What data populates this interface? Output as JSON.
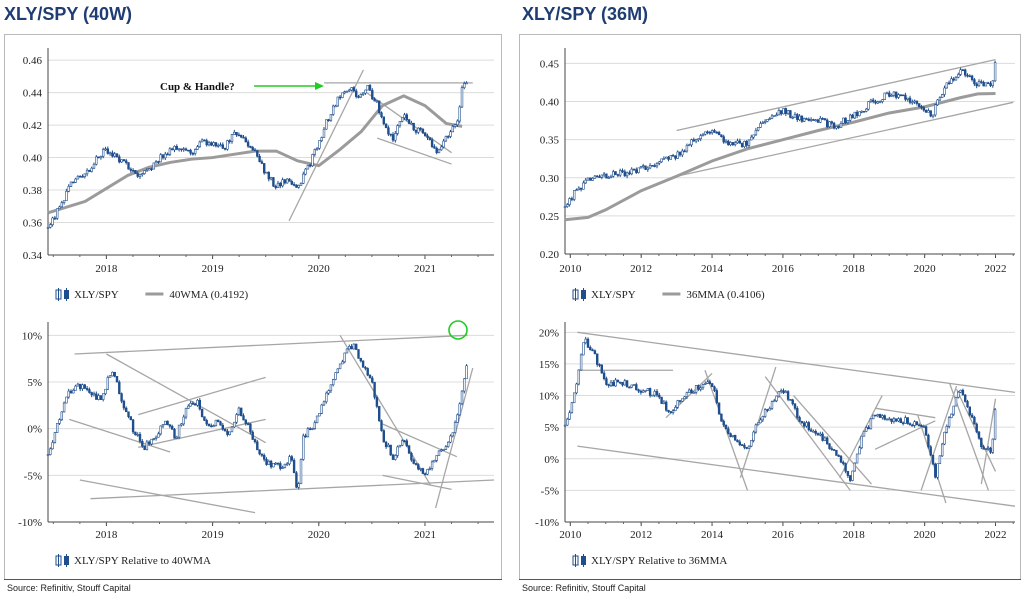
{
  "left_title": "XLY/SPY (40W)",
  "right_title": "XLY/SPY (36M)",
  "left_source": "Source: Refinitiv, Stouff Capital",
  "right_source": "Source: Refinitiv, Stouff Capital",
  "colors": {
    "price": "#1f4e8c",
    "ma": "#9b9b9b",
    "trend": "#a6a6a6",
    "arrow": "#22cc22",
    "title": "#1f3d73"
  },
  "chart_data": [
    {
      "id": "tl",
      "type": "line",
      "x_ticks": [
        "2018",
        "2019",
        "2020",
        "2021"
      ],
      "x_tick_values": [
        2018,
        2019,
        2020,
        2021
      ],
      "xlim": [
        2017.45,
        2021.65
      ],
      "y_ticks": [
        "0.46",
        "0.44",
        "0.42",
        "0.40",
        "0.38",
        "0.36",
        "0.34"
      ],
      "y_tick_values": [
        0.46,
        0.44,
        0.42,
        0.4,
        0.38,
        0.36,
        0.34
      ],
      "ylim": [
        0.34,
        0.465
      ],
      "grid": "horizontal",
      "annotation": "Cup & Handle?",
      "legend": [
        {
          "name": "XLY/SPY",
          "kind": "candles"
        },
        {
          "name": "40WMA (0.4192)",
          "kind": "line"
        }
      ],
      "series": [
        {
          "name": "XLY/SPY",
          "kind": "price",
          "x": [
            2017.45,
            2017.55,
            2017.62,
            2017.7,
            2017.8,
            2017.9,
            2018.0,
            2018.1,
            2018.2,
            2018.3,
            2018.4,
            2018.5,
            2018.6,
            2018.7,
            2018.8,
            2018.9,
            2019.0,
            2019.1,
            2019.2,
            2019.3,
            2019.4,
            2019.5,
            2019.6,
            2019.7,
            2019.8,
            2019.9,
            2020.0,
            2020.1,
            2020.2,
            2020.28,
            2020.35,
            2020.45,
            2020.55,
            2020.62,
            2020.7,
            2020.8,
            2020.9,
            2021.0,
            2021.1,
            2021.2,
            2021.3,
            2021.35,
            2021.4
          ],
          "y": [
            0.357,
            0.368,
            0.378,
            0.387,
            0.389,
            0.398,
            0.405,
            0.4,
            0.395,
            0.39,
            0.392,
            0.4,
            0.405,
            0.406,
            0.402,
            0.41,
            0.408,
            0.405,
            0.415,
            0.41,
            0.404,
            0.39,
            0.382,
            0.386,
            0.381,
            0.394,
            0.41,
            0.426,
            0.439,
            0.444,
            0.437,
            0.444,
            0.433,
            0.418,
            0.412,
            0.428,
            0.418,
            0.414,
            0.404,
            0.412,
            0.422,
            0.442,
            0.448
          ]
        },
        {
          "name": "40WMA (0.4192)",
          "kind": "ma",
          "x": [
            2017.45,
            2017.6,
            2017.8,
            2018.0,
            2018.2,
            2018.4,
            2018.6,
            2018.8,
            2019.0,
            2019.2,
            2019.4,
            2019.6,
            2019.8,
            2020.0,
            2020.2,
            2020.4,
            2020.6,
            2020.8,
            2021.0,
            2021.2,
            2021.35
          ],
          "y": [
            0.366,
            0.369,
            0.373,
            0.381,
            0.389,
            0.394,
            0.397,
            0.399,
            0.4,
            0.402,
            0.404,
            0.404,
            0.398,
            0.395,
            0.405,
            0.416,
            0.432,
            0.438,
            0.432,
            0.421,
            0.4192
          ]
        }
      ],
      "trendlines": [
        {
          "x": [
            2020.05,
            2021.45
          ],
          "y": [
            0.446,
            0.446
          ]
        },
        {
          "x": [
            2019.72,
            2020.42
          ],
          "y": [
            0.361,
            0.454
          ]
        },
        {
          "x": [
            2020.45,
            2021.25
          ],
          "y": [
            0.44,
            0.403
          ]
        },
        {
          "x": [
            2020.55,
            2021.25
          ],
          "y": [
            0.412,
            0.396
          ]
        }
      ]
    },
    {
      "id": "tr",
      "type": "line",
      "x_ticks": [
        "2010",
        "2012",
        "2014",
        "2016",
        "2018",
        "2020",
        "2022"
      ],
      "x_tick_values": [
        2010,
        2012,
        2014,
        2016,
        2018,
        2020,
        2022
      ],
      "xlim": [
        2009.85,
        2022.55
      ],
      "y_ticks": [
        "0.45",
        "0.40",
        "0.35",
        "0.30",
        "0.25",
        "0.20"
      ],
      "y_tick_values": [
        0.45,
        0.4,
        0.35,
        0.3,
        0.25,
        0.2
      ],
      "ylim": [
        0.2,
        0.465
      ],
      "grid": "horizontal",
      "legend": [
        {
          "name": "XLY/SPY",
          "kind": "candles"
        },
        {
          "name": "36MMA (0.4106)",
          "kind": "line"
        }
      ],
      "series": [
        {
          "name": "XLY/SPY",
          "kind": "price",
          "x": [
            2009.85,
            2010.2,
            2010.6,
            2011.0,
            2011.5,
            2012.0,
            2012.5,
            2013.0,
            2013.5,
            2014.0,
            2014.5,
            2015.0,
            2015.5,
            2016.0,
            2016.5,
            2017.0,
            2017.5,
            2018.0,
            2018.5,
            2019.0,
            2019.5,
            2020.0,
            2020.2,
            2020.6,
            2021.0,
            2021.5,
            2021.9,
            2022.0
          ],
          "y": [
            0.262,
            0.285,
            0.3,
            0.302,
            0.306,
            0.312,
            0.322,
            0.33,
            0.35,
            0.362,
            0.343,
            0.345,
            0.376,
            0.388,
            0.376,
            0.375,
            0.368,
            0.383,
            0.398,
            0.411,
            0.404,
            0.392,
            0.383,
            0.42,
            0.442,
            0.423,
            0.422,
            0.45
          ]
        },
        {
          "name": "36MMA (0.4106)",
          "kind": "ma",
          "x": [
            2009.85,
            2010.5,
            2011.0,
            2012.0,
            2013.0,
            2014.0,
            2015.0,
            2016.0,
            2017.0,
            2018.0,
            2019.0,
            2020.0,
            2021.0,
            2021.5,
            2022.0
          ],
          "y": [
            0.245,
            0.248,
            0.258,
            0.283,
            0.302,
            0.322,
            0.338,
            0.35,
            0.362,
            0.373,
            0.385,
            0.393,
            0.405,
            0.41,
            0.4106
          ]
        }
      ],
      "trendlines": [
        {
          "x": [
            2013.0,
            2022.0
          ],
          "y": [
            0.362,
            0.455
          ]
        },
        {
          "x": [
            2013.0,
            2022.5
          ],
          "y": [
            0.302,
            0.399
          ]
        }
      ]
    },
    {
      "id": "bl",
      "type": "line",
      "x_ticks": [
        "2018",
        "2019",
        "2020",
        "2021"
      ],
      "x_tick_values": [
        2018,
        2019,
        2020,
        2021
      ],
      "xlim": [
        2017.45,
        2021.65
      ],
      "y_ticks": [
        "10%",
        "5%",
        "0%",
        "-5%",
        "-10%"
      ],
      "y_tick_values": [
        10,
        5,
        0,
        -5,
        -10
      ],
      "ylim": [
        -10,
        11
      ],
      "grid": "horizontal",
      "legend": [
        {
          "name": "XLY/SPY Relative to 40WMA",
          "kind": "candles"
        }
      ],
      "series": [
        {
          "name": "XLY/SPY Relative to 40WMA",
          "kind": "price",
          "x": [
            2017.45,
            2017.55,
            2017.65,
            2017.75,
            2017.85,
            2017.95,
            2018.05,
            2018.15,
            2018.25,
            2018.35,
            2018.45,
            2018.55,
            2018.65,
            2018.75,
            2018.85,
            2018.95,
            2019.05,
            2019.15,
            2019.25,
            2019.35,
            2019.45,
            2019.55,
            2019.65,
            2019.75,
            2019.8,
            2019.85,
            2019.95,
            2020.05,
            2020.15,
            2020.25,
            2020.32,
            2020.4,
            2020.5,
            2020.6,
            2020.7,
            2020.8,
            2020.9,
            2021.0,
            2021.1,
            2021.2,
            2021.3,
            2021.35,
            2021.4
          ],
          "y": [
            -3,
            1,
            4,
            4.5,
            4,
            3,
            6.5,
            3,
            0,
            -2,
            -1,
            1,
            -1,
            2,
            3,
            0,
            1,
            -1,
            2,
            0,
            -3,
            -4,
            -4,
            -3,
            -7,
            -1,
            0.5,
            3,
            6,
            8,
            9,
            7,
            5,
            -1,
            -3,
            -1,
            -4,
            -5,
            -3,
            -2,
            1,
            4,
            7.5
          ]
        }
      ],
      "trendlines": [
        {
          "x": [
            2017.7,
            2021.4
          ],
          "y": [
            8.0,
            10.0
          ]
        },
        {
          "x": [
            2017.65,
            2018.6
          ],
          "y": [
            1.0,
            -2.5
          ]
        },
        {
          "x": [
            2018.0,
            2019.5
          ],
          "y": [
            8.0,
            -1.5
          ]
        },
        {
          "x": [
            2018.3,
            2019.5
          ],
          "y": [
            1.5,
            5.5
          ]
        },
        {
          "x": [
            2018.3,
            2019.5
          ],
          "y": [
            -2.0,
            1.0
          ]
        },
        {
          "x": [
            2017.75,
            2019.4
          ],
          "y": [
            -5.5,
            -9.0
          ]
        },
        {
          "x": [
            2017.85,
            2021.65
          ],
          "y": [
            -7.5,
            -5.5
          ]
        },
        {
          "x": [
            2020.2,
            2021.05
          ],
          "y": [
            10.0,
            -6.0
          ]
        },
        {
          "x": [
            2020.6,
            2021.25
          ],
          "y": [
            -5.0,
            -6.5
          ]
        },
        {
          "x": [
            2020.6,
            2021.3
          ],
          "y": [
            0.5,
            -3.0
          ]
        },
        {
          "x": [
            2021.1,
            2021.45
          ],
          "y": [
            -8.5,
            6.5
          ]
        }
      ]
    },
    {
      "id": "br",
      "type": "line",
      "x_ticks": [
        "2010",
        "2012",
        "2014",
        "2016",
        "2018",
        "2020",
        "2022"
      ],
      "x_tick_values": [
        2010,
        2012,
        2014,
        2016,
        2018,
        2020,
        2022
      ],
      "xlim": [
        2009.85,
        2022.55
      ],
      "y_ticks": [
        "20%",
        "15%",
        "10%",
        "5%",
        "0%",
        "-5%",
        "-10%"
      ],
      "y_tick_values": [
        20,
        15,
        10,
        5,
        0,
        -5,
        -10
      ],
      "ylim": [
        -10,
        21
      ],
      "grid": "horizontal",
      "legend": [
        {
          "name": "XLY/SPY Relative to 36MMA",
          "kind": "candles"
        }
      ],
      "series": [
        {
          "name": "XLY/SPY Relative to 36MMA",
          "kind": "price",
          "x": [
            2009.85,
            2010.1,
            2010.4,
            2010.7,
            2011.0,
            2011.5,
            2012.0,
            2012.5,
            2012.8,
            2013.0,
            2013.5,
            2014.0,
            2014.3,
            2014.7,
            2015.0,
            2015.3,
            2015.7,
            2016.0,
            2016.5,
            2017.0,
            2017.5,
            2017.9,
            2018.2,
            2018.6,
            2019.0,
            2019.5,
            2020.0,
            2020.3,
            2020.6,
            2021.0,
            2021.3,
            2021.6,
            2021.9,
            2022.0
          ],
          "y": [
            5,
            10,
            19,
            16,
            12,
            12,
            11,
            10,
            7,
            9,
            11,
            12,
            5,
            3,
            1,
            6,
            9,
            11,
            6,
            4,
            1,
            -3,
            3,
            7,
            6,
            6,
            5,
            -3,
            5,
            11,
            7,
            2,
            1,
            9
          ]
        }
      ],
      "trendlines": [
        {
          "x": [
            2010.2,
            2022.55
          ],
          "y": [
            20.0,
            10.5
          ]
        },
        {
          "x": [
            2010.2,
            2022.55
          ],
          "y": [
            2.0,
            -7.5
          ]
        },
        {
          "x": [
            2010.2,
            2012.9
          ],
          "y": [
            14.0,
            14.0
          ]
        },
        {
          "x": [
            2012.7,
            2014.0
          ],
          "y": [
            6.5,
            13.5
          ]
        },
        {
          "x": [
            2013.8,
            2015.0
          ],
          "y": [
            14.0,
            -5.0
          ]
        },
        {
          "x": [
            2014.8,
            2015.8
          ],
          "y": [
            -3.0,
            14.5
          ]
        },
        {
          "x": [
            2015.5,
            2017.9
          ],
          "y": [
            13.0,
            -5.0
          ]
        },
        {
          "x": [
            2016.3,
            2018.5
          ],
          "y": [
            10.0,
            -4.0
          ]
        },
        {
          "x": [
            2017.6,
            2018.8
          ],
          "y": [
            -3.0,
            10.0
          ]
        },
        {
          "x": [
            2018.6,
            2020.3
          ],
          "y": [
            8.0,
            6.5
          ]
        },
        {
          "x": [
            2018.6,
            2020.3
          ],
          "y": [
            1.5,
            6.0
          ]
        },
        {
          "x": [
            2019.8,
            2020.6
          ],
          "y": [
            7.0,
            -7.0
          ]
        },
        {
          "x": [
            2019.9,
            2020.9
          ],
          "y": [
            -5.0,
            11.5
          ]
        },
        {
          "x": [
            2020.7,
            2021.8
          ],
          "y": [
            12.0,
            -5.0
          ]
        },
        {
          "x": [
            2021.6,
            2022.0
          ],
          "y": [
            -4.0,
            9.5
          ]
        },
        {
          "x": [
            2020.9,
            2022.0
          ],
          "y": [
            11.0,
            -2.0
          ]
        }
      ]
    }
  ]
}
